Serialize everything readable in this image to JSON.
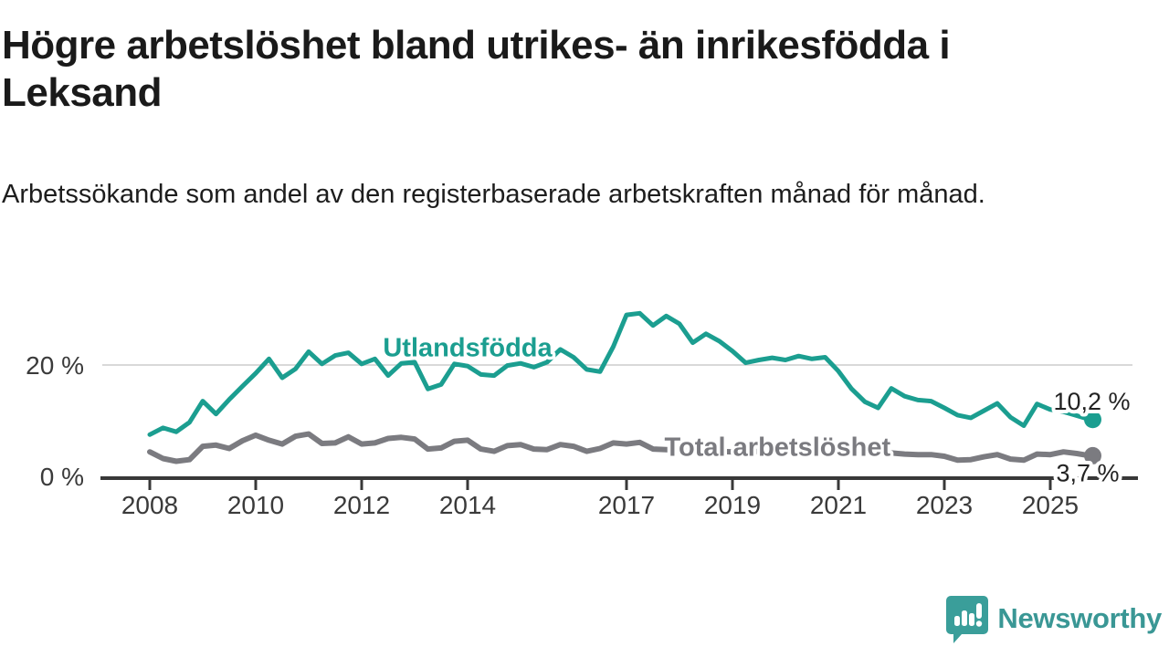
{
  "header": {
    "title": "Högre arbetslöshet bland utrikes- än inrikesfödda i Leksand",
    "subtitle": "Arbetssökande som andel av den registerbaserade arbetskraften månad för månad."
  },
  "branding": {
    "name": "Newsworthy",
    "logo_icon": "speech-bubble-bar-chart-icon",
    "brand_color": "#3a9e9a"
  },
  "chart_data": {
    "type": "line",
    "title": "Högre arbetslöshet bland utrikes- än inrikesfödda i Leksand",
    "xlabel": "",
    "ylabel": "",
    "grid": "horizontal-at-20-only",
    "legend_position": "inline-labels-on-lines",
    "x_axis": {
      "range_years": [
        2007.1,
        2026.6
      ],
      "ticks": [
        {
          "value": 2008,
          "label": "2008"
        },
        {
          "value": 2010,
          "label": "2010"
        },
        {
          "value": 2012,
          "label": "2012"
        },
        {
          "value": 2014,
          "label": "2014"
        },
        {
          "value": 2017,
          "label": "2017"
        },
        {
          "value": 2019,
          "label": "2019"
        },
        {
          "value": 2021,
          "label": "2021"
        },
        {
          "value": 2023,
          "label": "2023"
        },
        {
          "value": 2025,
          "label": "2025"
        }
      ]
    },
    "y_axis": {
      "unit": "%",
      "range": [
        0,
        31
      ],
      "ticks": [
        {
          "value": 20,
          "label": "20 %"
        },
        {
          "value": 0,
          "label": "0 %"
        }
      ],
      "gridline_values": [
        20
      ]
    },
    "x": [
      2008.0,
      2008.25,
      2008.5,
      2008.75,
      2009.0,
      2009.25,
      2009.5,
      2009.75,
      2010.0,
      2010.25,
      2010.5,
      2010.75,
      2011.0,
      2011.25,
      2011.5,
      2011.75,
      2012.0,
      2012.25,
      2012.5,
      2012.75,
      2013.0,
      2013.25,
      2013.5,
      2013.75,
      2014.0,
      2014.25,
      2014.5,
      2014.75,
      2015.0,
      2015.25,
      2015.5,
      2015.75,
      2016.0,
      2016.25,
      2016.5,
      2016.75,
      2017.0,
      2017.25,
      2017.5,
      2017.75,
      2018.0,
      2018.25,
      2018.5,
      2018.75,
      2019.0,
      2019.25,
      2019.5,
      2019.75,
      2020.0,
      2020.25,
      2020.5,
      2020.75,
      2021.0,
      2021.25,
      2021.5,
      2021.75,
      2022.0,
      2022.25,
      2022.5,
      2022.75,
      2023.0,
      2023.25,
      2023.5,
      2023.75,
      2024.0,
      2024.25,
      2024.5,
      2024.75,
      2025.0,
      2025.25,
      2025.5,
      2025.75
    ],
    "series": [
      {
        "name": "Utlandsfödda",
        "color": "#1b9e90",
        "line_width": 5,
        "end_label": "10,2 %",
        "end_value": 10.2,
        "label_anchor": {
          "year": 2014.0,
          "pct": 23.2
        },
        "end_label_offset": {
          "dx": -40,
          "dy": -11
        },
        "values": [
          7.5,
          8.7,
          8.0,
          9.7,
          13.5,
          11.2,
          13.8,
          16.2,
          18.5,
          21.1,
          17.7,
          19.3,
          22.4,
          20.2,
          21.7,
          22.2,
          20.2,
          21.1,
          18.1,
          20.3,
          20.5,
          15.7,
          16.5,
          20.2,
          19.8,
          18.3,
          18.1,
          19.9,
          20.3,
          19.6,
          20.5,
          22.8,
          21.4,
          19.2,
          18.8,
          23.3,
          29.0,
          29.3,
          27.1,
          28.8,
          27.4,
          24.0,
          25.6,
          24.3,
          22.5,
          20.4,
          20.9,
          21.3,
          20.9,
          21.6,
          21.1,
          21.4,
          18.9,
          15.7,
          13.4,
          12.3,
          15.8,
          14.4,
          13.7,
          13.5,
          12.3,
          11.0,
          10.5,
          11.8,
          13.1,
          10.6,
          9.1,
          13.0,
          12.0,
          11.6,
          10.9,
          10.2
        ]
      },
      {
        "name": "Total arbetslöshet",
        "color": "#7b7b80",
        "line_width": 6,
        "end_label": "3,7 %",
        "end_value": 3.7,
        "label_anchor": {
          "year": 2019.85,
          "pct": 5.3
        },
        "end_label_offset": {
          "dx": -37,
          "dy": 28
        },
        "values": [
          4.4,
          3.2,
          2.7,
          3.0,
          5.4,
          5.6,
          5.0,
          6.4,
          7.4,
          6.5,
          5.8,
          7.2,
          7.6,
          5.9,
          6.0,
          7.1,
          5.8,
          6.0,
          6.8,
          7.0,
          6.7,
          4.9,
          5.1,
          6.3,
          6.5,
          4.9,
          4.5,
          5.5,
          5.7,
          4.9,
          4.8,
          5.7,
          5.4,
          4.5,
          5.0,
          6.0,
          5.8,
          6.1,
          4.9,
          4.8,
          4.7,
          4.5,
          4.4,
          4.5,
          4.4,
          4.3,
          4.5,
          4.7,
          4.8,
          5.8,
          5.9,
          5.6,
          5.2,
          4.9,
          4.6,
          4.4,
          4.2,
          4.0,
          3.9,
          3.9,
          3.6,
          2.9,
          3.0,
          3.5,
          3.9,
          3.1,
          2.9,
          4.0,
          3.9,
          4.4,
          4.1,
          3.7
        ]
      }
    ]
  }
}
